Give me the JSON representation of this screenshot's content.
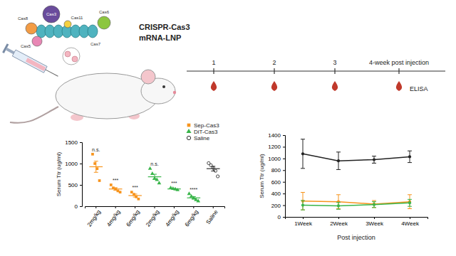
{
  "diagram": {
    "cas_proteins": [
      "Cas3",
      "Cas6",
      "Cas11",
      "Cas8",
      "Cas5",
      "Cas7"
    ],
    "title": "CRISPR-Cas3",
    "subtitle": "mRNA-LNP",
    "timeline": [
      "1",
      "2",
      "3",
      "4-week post injection"
    ],
    "assay": "ELISA"
  },
  "chart_data": [
    {
      "type": "scatter",
      "categories": [
        "2mg/kg",
        "4mg/kg",
        "6mg/kg",
        "2mg/kg",
        "4mg/kg",
        "6mg/kg",
        "Saline"
      ],
      "ylabel": "Serum Ttr (ug/ml)",
      "ylim": [
        0,
        1500
      ],
      "yticks": [
        0,
        500,
        1000,
        1500
      ],
      "grid": false,
      "legend": "top-right",
      "series": [
        {
          "name": "Sep-Cas3",
          "color": "#f7941d",
          "marker": "square",
          "values": [
            [
              1220,
              1000,
              880,
              600
            ],
            [
              500,
              430,
              400,
              360,
              330
            ],
            [
              330,
              280,
              220,
              170
            ],
            null,
            null,
            null,
            null
          ],
          "mean": [
            925,
            404,
            250,
            null,
            null,
            null,
            null
          ],
          "error": [
            130,
            30,
            35,
            null,
            null,
            null,
            null
          ]
        },
        {
          "name": "DiT-Cas3",
          "color": "#39b54a",
          "marker": "triangle",
          "values": [
            null,
            null,
            null,
            [
              880,
              760,
              650,
              620,
              540
            ],
            [
              430,
              410,
              400,
              380
            ],
            [
              290,
              230,
              190,
              150,
              120
            ],
            null
          ],
          "mean": [
            null,
            null,
            null,
            690,
            405,
            196,
            null
          ],
          "error": [
            null,
            null,
            null,
            60,
            10,
            30,
            null
          ]
        },
        {
          "name": "Saline",
          "color": "#333333",
          "marker": "open-circle",
          "values": [
            null,
            null,
            null,
            null,
            null,
            null,
            [
              1010,
              960,
              900,
              830,
              700
            ]
          ],
          "mean": [
            null,
            null,
            null,
            null,
            null,
            null,
            880
          ],
          "error": [
            null,
            null,
            null,
            null,
            null,
            null,
            55
          ]
        }
      ],
      "annotations": [
        {
          "category": 0,
          "text": "n.s."
        },
        {
          "category": 1,
          "text": "***"
        },
        {
          "category": 2,
          "text": "***"
        },
        {
          "category": 3,
          "text": "n.s."
        },
        {
          "category": 4,
          "text": "***"
        },
        {
          "category": 5,
          "text": "****"
        }
      ]
    },
    {
      "type": "line",
      "categories": [
        "1Week",
        "2Week",
        "3Week",
        "4Week"
      ],
      "xlabel": "Post injection",
      "ylabel": "Serum Ttr (ug/ml)",
      "ylim": [
        0,
        1400
      ],
      "yticks": [
        0,
        200,
        400,
        600,
        800,
        1000,
        1200,
        1400
      ],
      "grid": false,
      "series": [
        {
          "color": "#222222",
          "marker": "circle",
          "values": [
            1080,
            960,
            980,
            1030
          ],
          "error": [
            250,
            150,
            60,
            100
          ]
        },
        {
          "color": "#f7941d",
          "marker": "circle",
          "values": [
            270,
            260,
            220,
            260
          ],
          "error": [
            150,
            120,
            60,
            120
          ]
        },
        {
          "color": "#39b54a",
          "marker": "circle",
          "values": [
            200,
            190,
            210,
            240
          ],
          "error": [
            80,
            60,
            50,
            60
          ]
        }
      ]
    }
  ]
}
